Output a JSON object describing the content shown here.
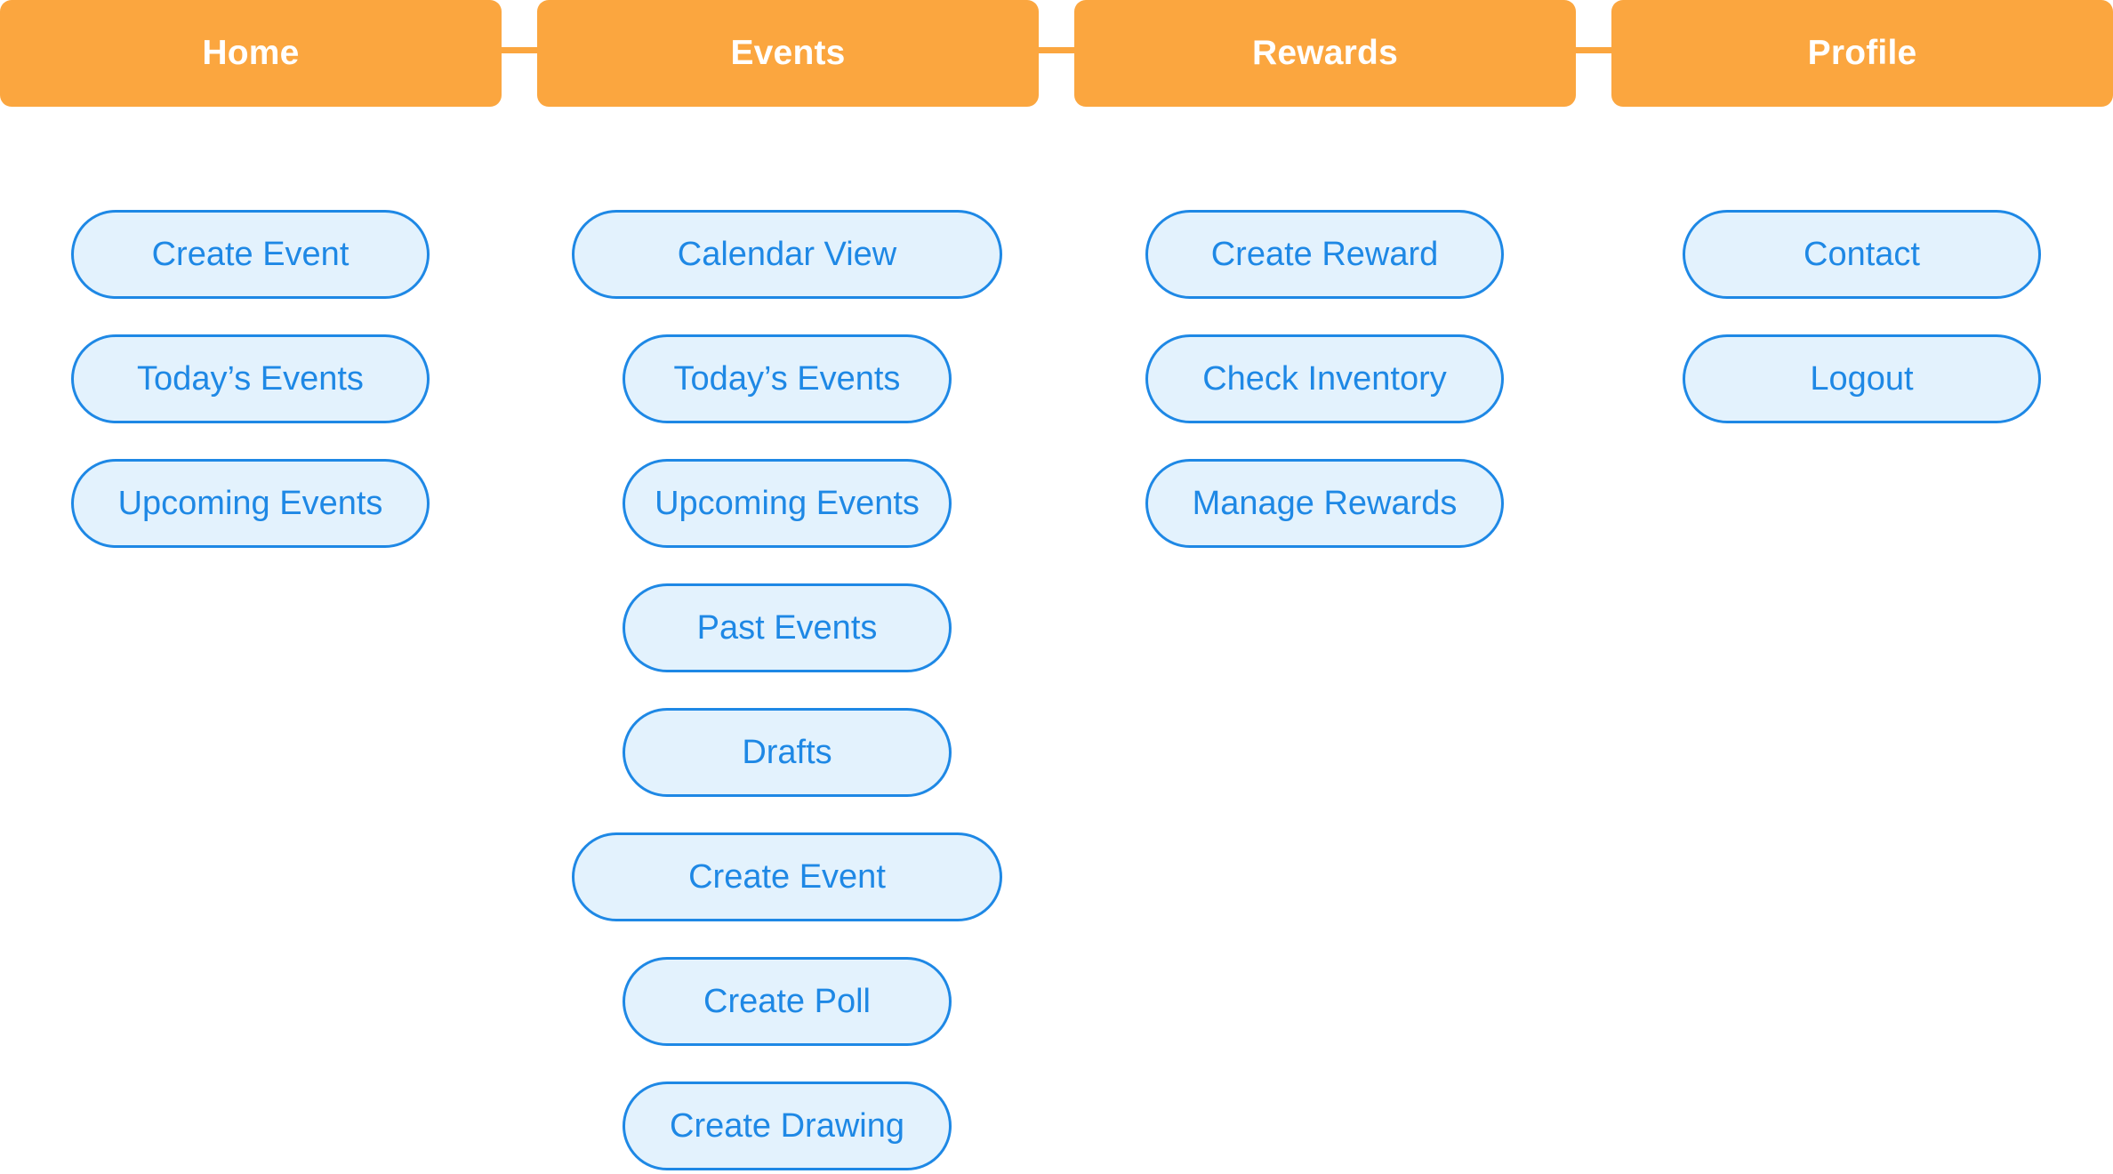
{
  "colors": {
    "tab_fill": "#FBA63F",
    "tab_text": "#FFFFFF",
    "pill_fill": "#E3F2FD",
    "pill_border": "#1E88E5",
    "pill_text": "#1E88E5",
    "background": "#FFFFFF"
  },
  "nav": {
    "home": {
      "label": "Home",
      "items": [
        "Create Event",
        "Today’s Events",
        "Upcoming Events"
      ]
    },
    "events": {
      "label": "Events",
      "items": [
        "Calendar View",
        "Today’s Events",
        "Upcoming Events",
        "Past Events",
        "Drafts",
        "Create Event",
        "Create Poll",
        "Create Drawing"
      ]
    },
    "rewards": {
      "label": "Rewards",
      "items": [
        "Create Reward",
        "Check Inventory",
        "Manage Rewards"
      ]
    },
    "profile": {
      "label": "Profile",
      "items": [
        "Contact",
        "Logout"
      ]
    }
  }
}
